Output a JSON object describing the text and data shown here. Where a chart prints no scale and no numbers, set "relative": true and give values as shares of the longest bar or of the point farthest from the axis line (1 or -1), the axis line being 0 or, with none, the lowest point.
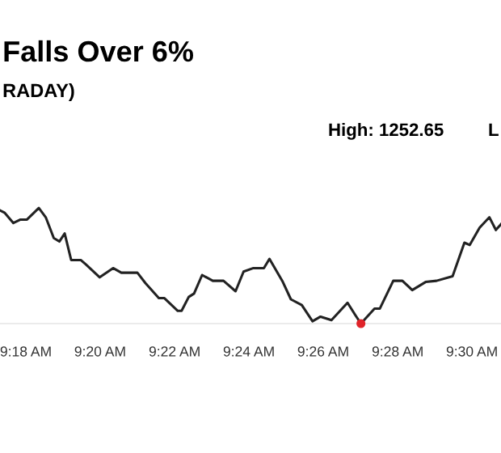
{
  "chart_data": {
    "type": "line",
    "title": "Falls Over 6%",
    "subtitle": "RADAY)",
    "annotations": [
      "High: 1252.65",
      "L"
    ],
    "relative": true,
    "xlim": [
      9.2884,
      9.513
    ],
    "xticks": [
      {
        "value": 9.3,
        "label": "9:18 AM"
      },
      {
        "value": 9.3333,
        "label": "9:20 AM"
      },
      {
        "value": 9.3667,
        "label": "9:22 AM"
      },
      {
        "value": 9.4,
        "label": "9:24 AM"
      },
      {
        "value": 9.4333,
        "label": "9:26 AM"
      },
      {
        "value": 9.4667,
        "label": "9:28 AM"
      },
      {
        "value": 9.5,
        "label": "9:30 AM"
      }
    ],
    "grid": false,
    "legend": false,
    "series": [
      {
        "type": "line",
        "color": "#222222",
        "x": [
          9.2884,
          9.2904,
          9.2944,
          9.2976,
          9.3005,
          9.3058,
          9.3089,
          9.3125,
          9.315,
          9.3174,
          9.3203,
          9.3246,
          9.327,
          9.3331,
          9.3391,
          9.3428,
          9.35,
          9.3536,
          9.3596,
          9.3621,
          9.3681,
          9.3698,
          9.373,
          9.3754,
          9.379,
          9.3838,
          9.3886,
          9.394,
          9.3976,
          9.402,
          9.4067,
          9.4092,
          9.4152,
          9.4188,
          9.4237,
          9.4285,
          9.4321,
          9.437,
          9.4442,
          9.4478,
          9.4502,
          9.4563,
          9.4587,
          9.4647,
          9.4688,
          9.4732,
          9.4792,
          9.4841,
          9.4913,
          9.4966,
          9.499,
          9.5034,
          9.5078,
          9.5107,
          9.513
        ],
        "values": [
          0.98,
          0.96,
          0.87,
          0.9,
          0.9,
          1.0,
          0.92,
          0.74,
          0.71,
          0.78,
          0.55,
          0.55,
          0.51,
          0.4,
          0.48,
          0.44,
          0.44,
          0.35,
          0.22,
          0.22,
          0.11,
          0.11,
          0.23,
          0.26,
          0.42,
          0.37,
          0.37,
          0.28,
          0.45,
          0.48,
          0.48,
          0.56,
          0.36,
          0.21,
          0.16,
          0.02,
          0.06,
          0.03,
          0.18,
          0.07,
          0,
          0.13,
          0.13,
          0.37,
          0.37,
          0.29,
          0.36,
          0.37,
          0.41,
          0.7,
          0.68,
          0.83,
          0.92,
          0.81,
          0.86
        ]
      },
      {
        "type": "scatter",
        "color": "#e0242a",
        "x": [
          9.4502
        ],
        "values": [
          0
        ]
      }
    ]
  }
}
